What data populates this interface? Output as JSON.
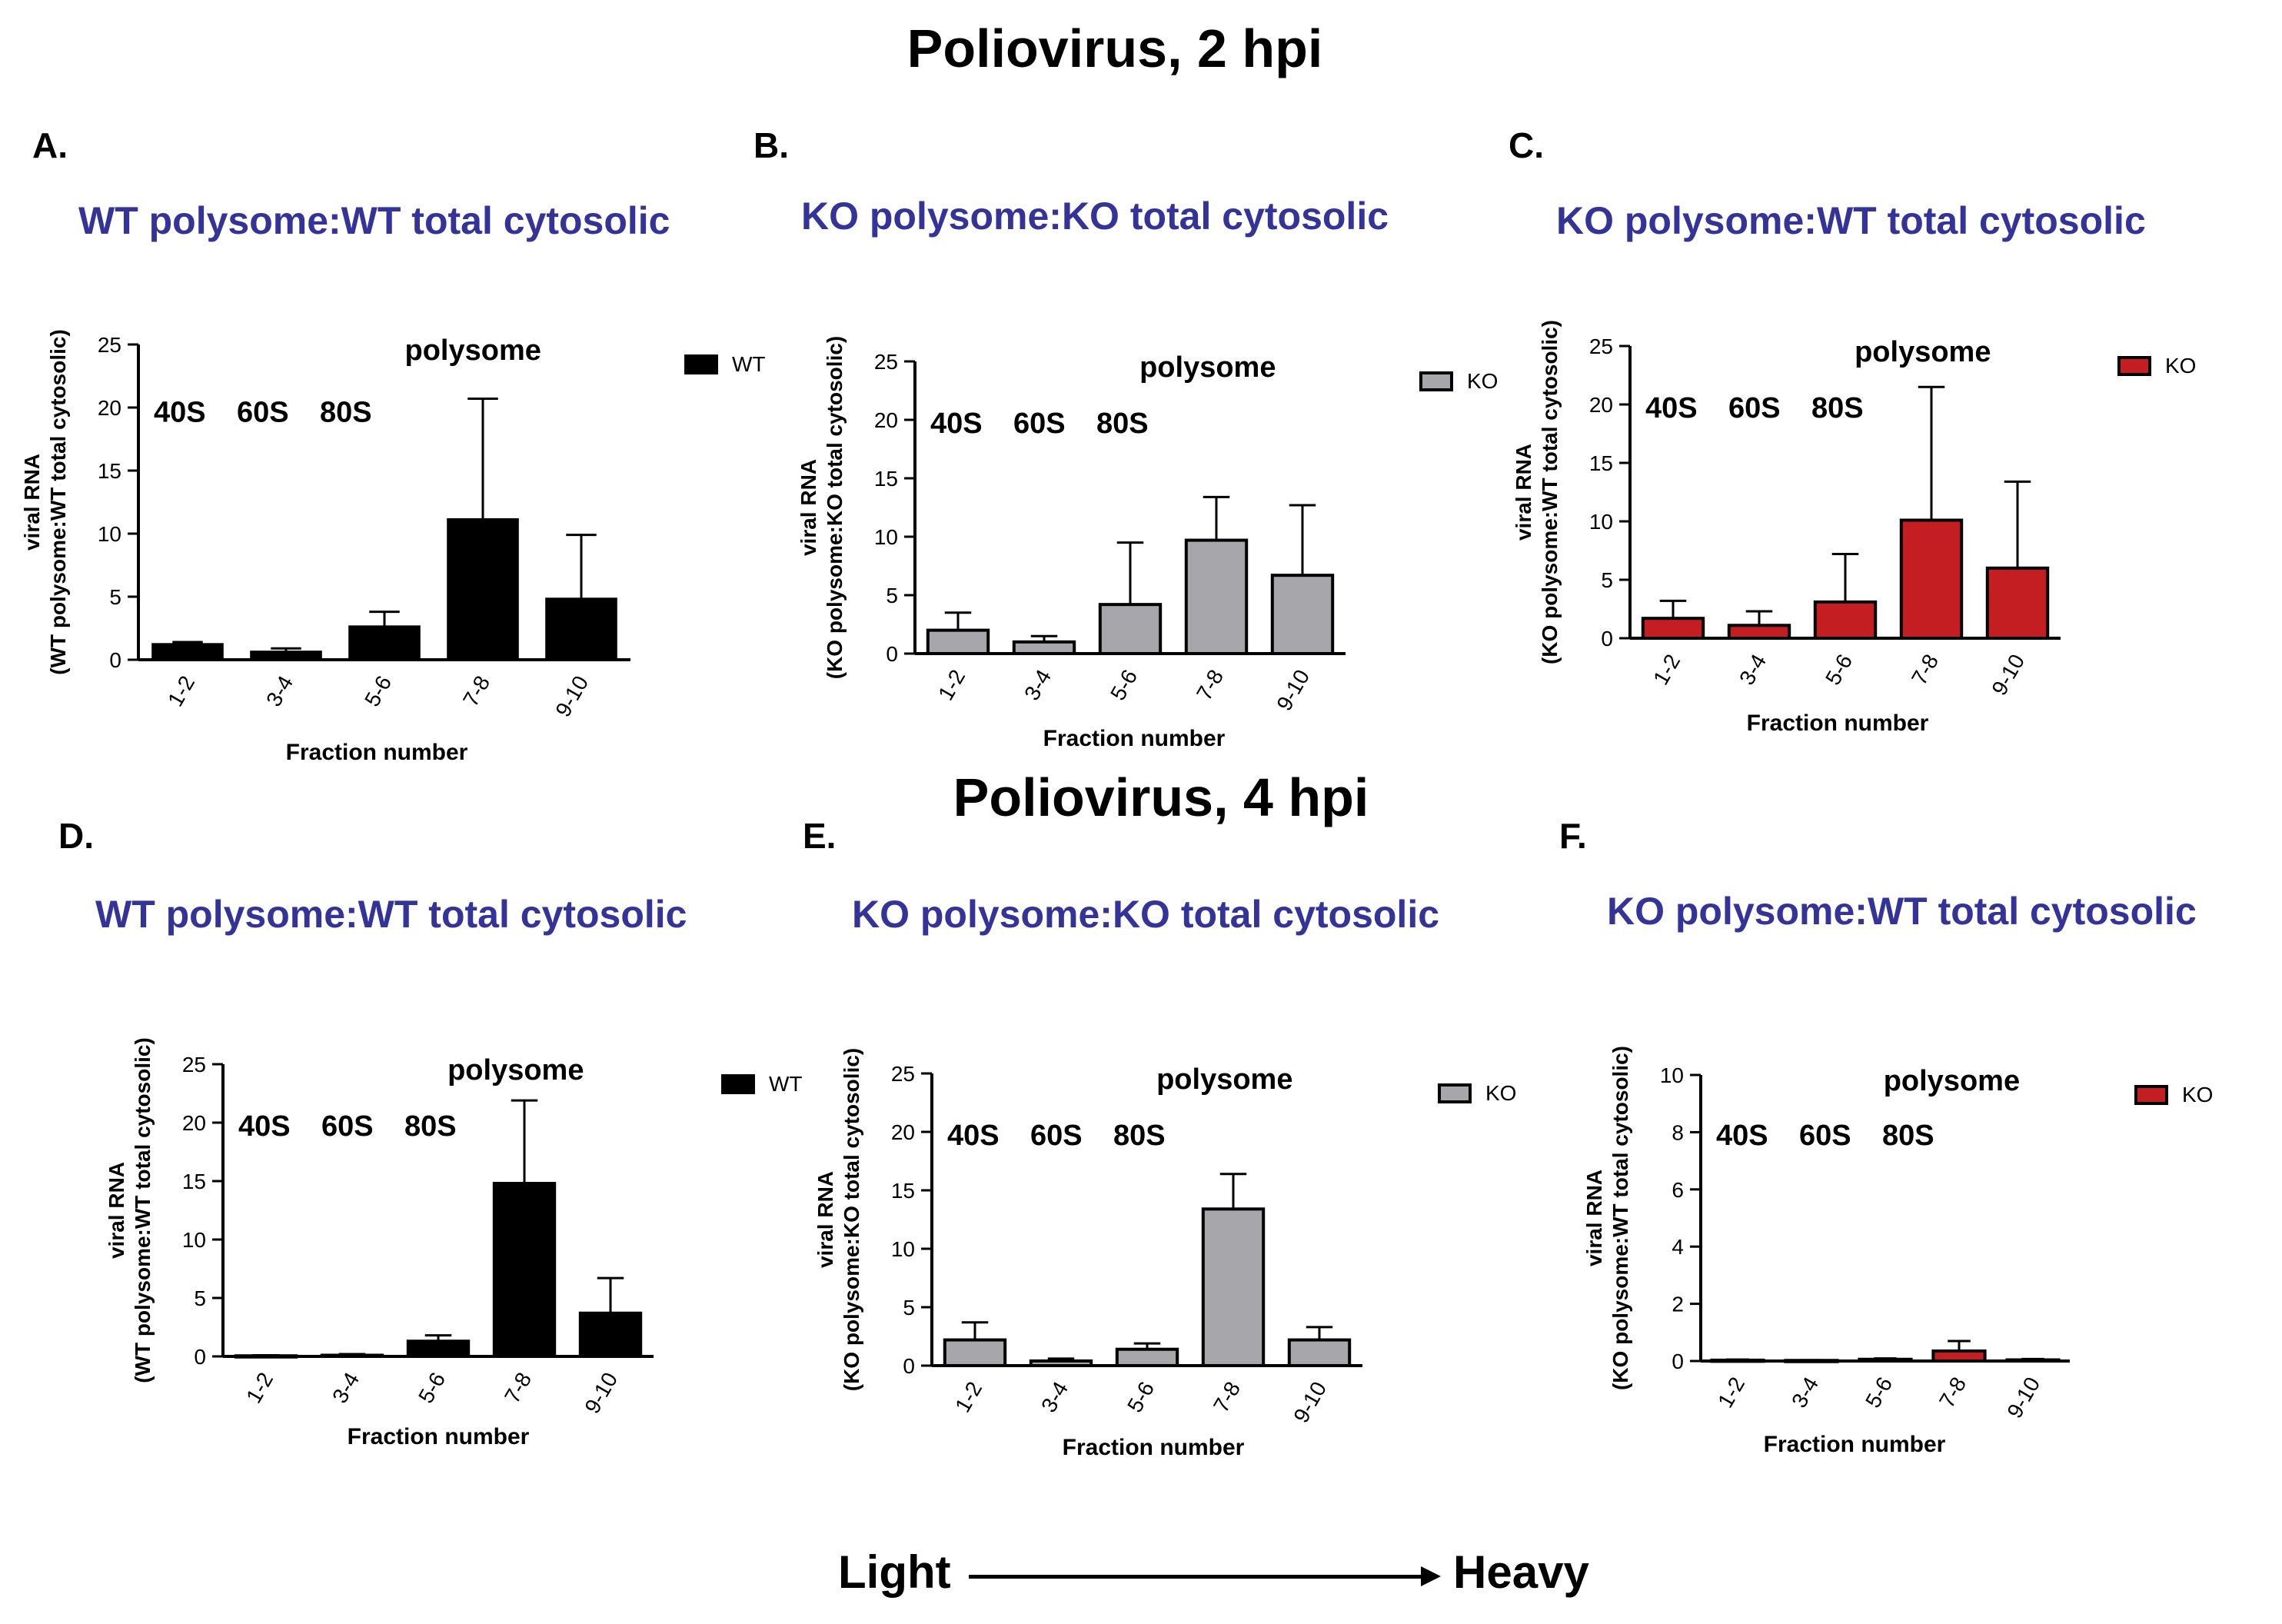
{
  "titles": {
    "top": "Poliovirus, 2 hpi",
    "bottom": "Poliovirus, 4 hpi"
  },
  "footer": {
    "light": "Light",
    "heavy": "Heavy"
  },
  "chart_data": [
    {
      "id": "A",
      "letter": "A.",
      "title": "WT polysome:WT total cytosolic",
      "type": "bar",
      "ylabel_line1": "viral RNA",
      "ylabel_line2": "(WT polysome:WT total cytosolic)",
      "xlabel": "Fraction number",
      "categories": [
        "1-2",
        "3-4",
        "5-6",
        "7-8",
        "9-10"
      ],
      "series": [
        {
          "name": "WT",
          "color": "#000000",
          "values": [
            1.2,
            0.6,
            2.6,
            11.1,
            4.8
          ],
          "errors": [
            0.2,
            0.3,
            1.2,
            9.6,
            5.1
          ]
        }
      ],
      "ylim": [
        0,
        25
      ],
      "yticks": [
        0,
        5,
        10,
        15,
        20,
        25
      ],
      "annotations": [
        "40S",
        "60S",
        "80S"
      ],
      "region_label": "polysome"
    },
    {
      "id": "B",
      "letter": "B.",
      "title": "KO polysome:KO total cytosolic",
      "type": "bar",
      "ylabel_line1": "viral RNA",
      "ylabel_line2": "(KO polysome:KO total cytosolic)",
      "xlabel": "Fraction number",
      "categories": [
        "1-2",
        "3-4",
        "5-6",
        "7-8",
        "9-10"
      ],
      "series": [
        {
          "name": "KO",
          "color": "#a6a6ab",
          "values": [
            2.0,
            1.0,
            4.2,
            9.7,
            6.7
          ],
          "errors": [
            1.5,
            0.5,
            5.3,
            3.7,
            6.0
          ]
        }
      ],
      "ylim": [
        0,
        25
      ],
      "yticks": [
        0,
        5,
        10,
        15,
        20,
        25
      ],
      "annotations": [
        "40S",
        "60S",
        "80S"
      ],
      "region_label": "polysome"
    },
    {
      "id": "C",
      "letter": "C.",
      "title": "KO polysome:WT total cytosolic",
      "type": "bar",
      "ylabel_line1": "viral RNA",
      "ylabel_line2": "(KO polysome:WT total cytosolic)",
      "xlabel": "Fraction number",
      "categories": [
        "1-2",
        "3-4",
        "5-6",
        "7-8",
        "9-10"
      ],
      "series": [
        {
          "name": "KO",
          "color": "#c41e23",
          "values": [
            1.7,
            1.1,
            3.1,
            10.1,
            6.0
          ],
          "errors": [
            1.5,
            1.2,
            4.1,
            11.4,
            7.4
          ]
        }
      ],
      "ylim": [
        0,
        25
      ],
      "yticks": [
        0,
        5,
        10,
        15,
        20,
        25
      ],
      "annotations": [
        "40S",
        "60S",
        "80S"
      ],
      "region_label": "polysome"
    },
    {
      "id": "D",
      "letter": "D.",
      "title": "WT polysome:WT total cytosolic",
      "type": "bar",
      "ylabel_line1": "viral RNA",
      "ylabel_line2": "(WT polysome:WT total cytosolic)",
      "xlabel": "Fraction number",
      "categories": [
        "1-2",
        "3-4",
        "5-6",
        "7-8",
        "9-10"
      ],
      "series": [
        {
          "name": "WT",
          "color": "#000000",
          "values": [
            0.05,
            0.1,
            1.3,
            14.8,
            3.7
          ],
          "errors": [
            0.05,
            0.1,
            0.5,
            7.1,
            3.0
          ]
        }
      ],
      "ylim": [
        0,
        25
      ],
      "yticks": [
        0,
        5,
        10,
        15,
        20,
        25
      ],
      "annotations": [
        "40S",
        "60S",
        "80S"
      ],
      "region_label": "polysome"
    },
    {
      "id": "E",
      "letter": "E.",
      "title": "KO polysome:KO total cytosolic",
      "type": "bar",
      "ylabel_line1": "viral RNA",
      "ylabel_line2": "(KO polysome:KO total cytosolic)",
      "xlabel": "Fraction number",
      "categories": [
        "1-2",
        "3-4",
        "5-6",
        "7-8",
        "9-10"
      ],
      "series": [
        {
          "name": "KO",
          "color": "#a6a6ab",
          "values": [
            2.2,
            0.4,
            1.4,
            13.4,
            2.2
          ],
          "errors": [
            1.5,
            0.2,
            0.5,
            3.0,
            1.1
          ]
        }
      ],
      "ylim": [
        0,
        25
      ],
      "yticks": [
        0,
        5,
        10,
        15,
        20,
        25
      ],
      "annotations": [
        "40S",
        "60S",
        "80S"
      ],
      "region_label": "polysome"
    },
    {
      "id": "F",
      "letter": "F.",
      "title": "KO polysome:WT total cytosolic",
      "type": "bar",
      "ylabel_line1": "viral RNA",
      "ylabel_line2": "(KO polysome:WT total cytosolic)",
      "xlabel": "Fraction number",
      "categories": [
        "1-2",
        "3-4",
        "5-6",
        "7-8",
        "9-10"
      ],
      "series": [
        {
          "name": "KO",
          "color": "#c41e23",
          "values": [
            0.03,
            0.02,
            0.06,
            0.35,
            0.04
          ],
          "errors": [
            0.02,
            0.01,
            0.03,
            0.35,
            0.03
          ]
        }
      ],
      "ylim": [
        0,
        10
      ],
      "yticks": [
        0,
        2,
        4,
        6,
        8,
        10
      ],
      "annotations": [
        "40S",
        "60S",
        "80S"
      ],
      "region_label": "polysome"
    }
  ]
}
